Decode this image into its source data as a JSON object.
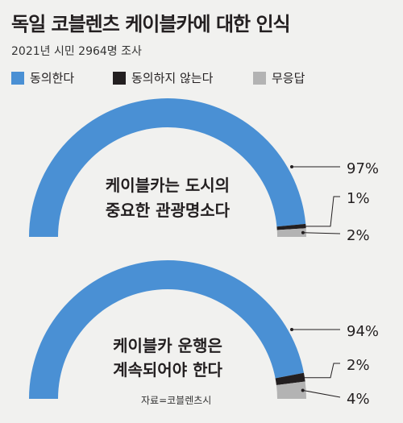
{
  "title": "독일 코블렌츠 케이블카에 대한 인식",
  "subtitle": "2021년 시민 2964명 조사",
  "legend": [
    {
      "label": "동의한다",
      "color": "#4a90d4"
    },
    {
      "label": "동의하지 않는다",
      "color": "#231f20"
    },
    {
      "label": "무응답",
      "color": "#b3b3b3"
    }
  ],
  "source": "자료=코블렌츠시",
  "chart_data": [
    {
      "type": "pie",
      "variant": "half-donut",
      "question_lines": [
        "케이블카는 도시의",
        "중요한 관광명소다"
      ],
      "categories": [
        "동의한다",
        "동의하지 않는다",
        "무응답"
      ],
      "values": [
        97,
        1,
        2
      ],
      "labels": [
        "97%",
        "1%",
        "2%"
      ],
      "colors": [
        "#4a90d4",
        "#231f20",
        "#b3b3b3"
      ]
    },
    {
      "type": "pie",
      "variant": "half-donut",
      "question_lines": [
        "케이블카 운행은",
        "계속되어야 한다"
      ],
      "categories": [
        "동의한다",
        "동의하지 않는다",
        "무응답"
      ],
      "values": [
        94,
        2,
        4
      ],
      "labels": [
        "94%",
        "2%",
        "4%"
      ],
      "colors": [
        "#4a90d4",
        "#231f20",
        "#b3b3b3"
      ]
    }
  ]
}
